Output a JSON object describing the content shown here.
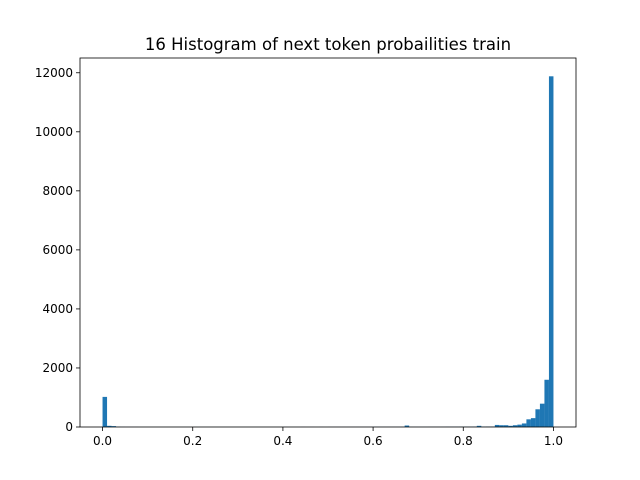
{
  "chart_data": {
    "type": "bar",
    "title": "16 Histogram of next token probailities train",
    "xlabel": "",
    "ylabel": "",
    "xlim": [
      -0.05,
      1.05
    ],
    "ylim": [
      0,
      12500
    ],
    "xticks": [
      0.0,
      0.2,
      0.4,
      0.6,
      0.8,
      1.0
    ],
    "xtick_labels": [
      "0.0",
      "0.2",
      "0.4",
      "0.6",
      "0.8",
      "1.0"
    ],
    "yticks": [
      0,
      2000,
      4000,
      6000,
      8000,
      10000,
      12000
    ],
    "ytick_labels": [
      "0",
      "2000",
      "4000",
      "6000",
      "8000",
      "10000",
      "12000"
    ],
    "grid": false,
    "bar_color": "#1f77b4",
    "bins": {
      "start": 0.0,
      "end": 1.0,
      "count": 100,
      "counts": [
        1020,
        40,
        30,
        8,
        5,
        4,
        3,
        3,
        2,
        2,
        2,
        2,
        2,
        2,
        2,
        2,
        2,
        2,
        2,
        2,
        2,
        2,
        2,
        2,
        2,
        2,
        2,
        2,
        2,
        2,
        2,
        2,
        2,
        2,
        2,
        2,
        2,
        2,
        2,
        2,
        3,
        2,
        2,
        2,
        3,
        2,
        3,
        2,
        3,
        2,
        3,
        3,
        3,
        3,
        3,
        3,
        3,
        3,
        3,
        3,
        5,
        5,
        5,
        5,
        5,
        5,
        5,
        50,
        5,
        5,
        5,
        5,
        6,
        6,
        6,
        6,
        8,
        8,
        8,
        10,
        10,
        10,
        12,
        40,
        12,
        15,
        15,
        70,
        60,
        60,
        40,
        60,
        80,
        120,
        260,
        300,
        600,
        790,
        1600,
        11880
      ]
    }
  }
}
